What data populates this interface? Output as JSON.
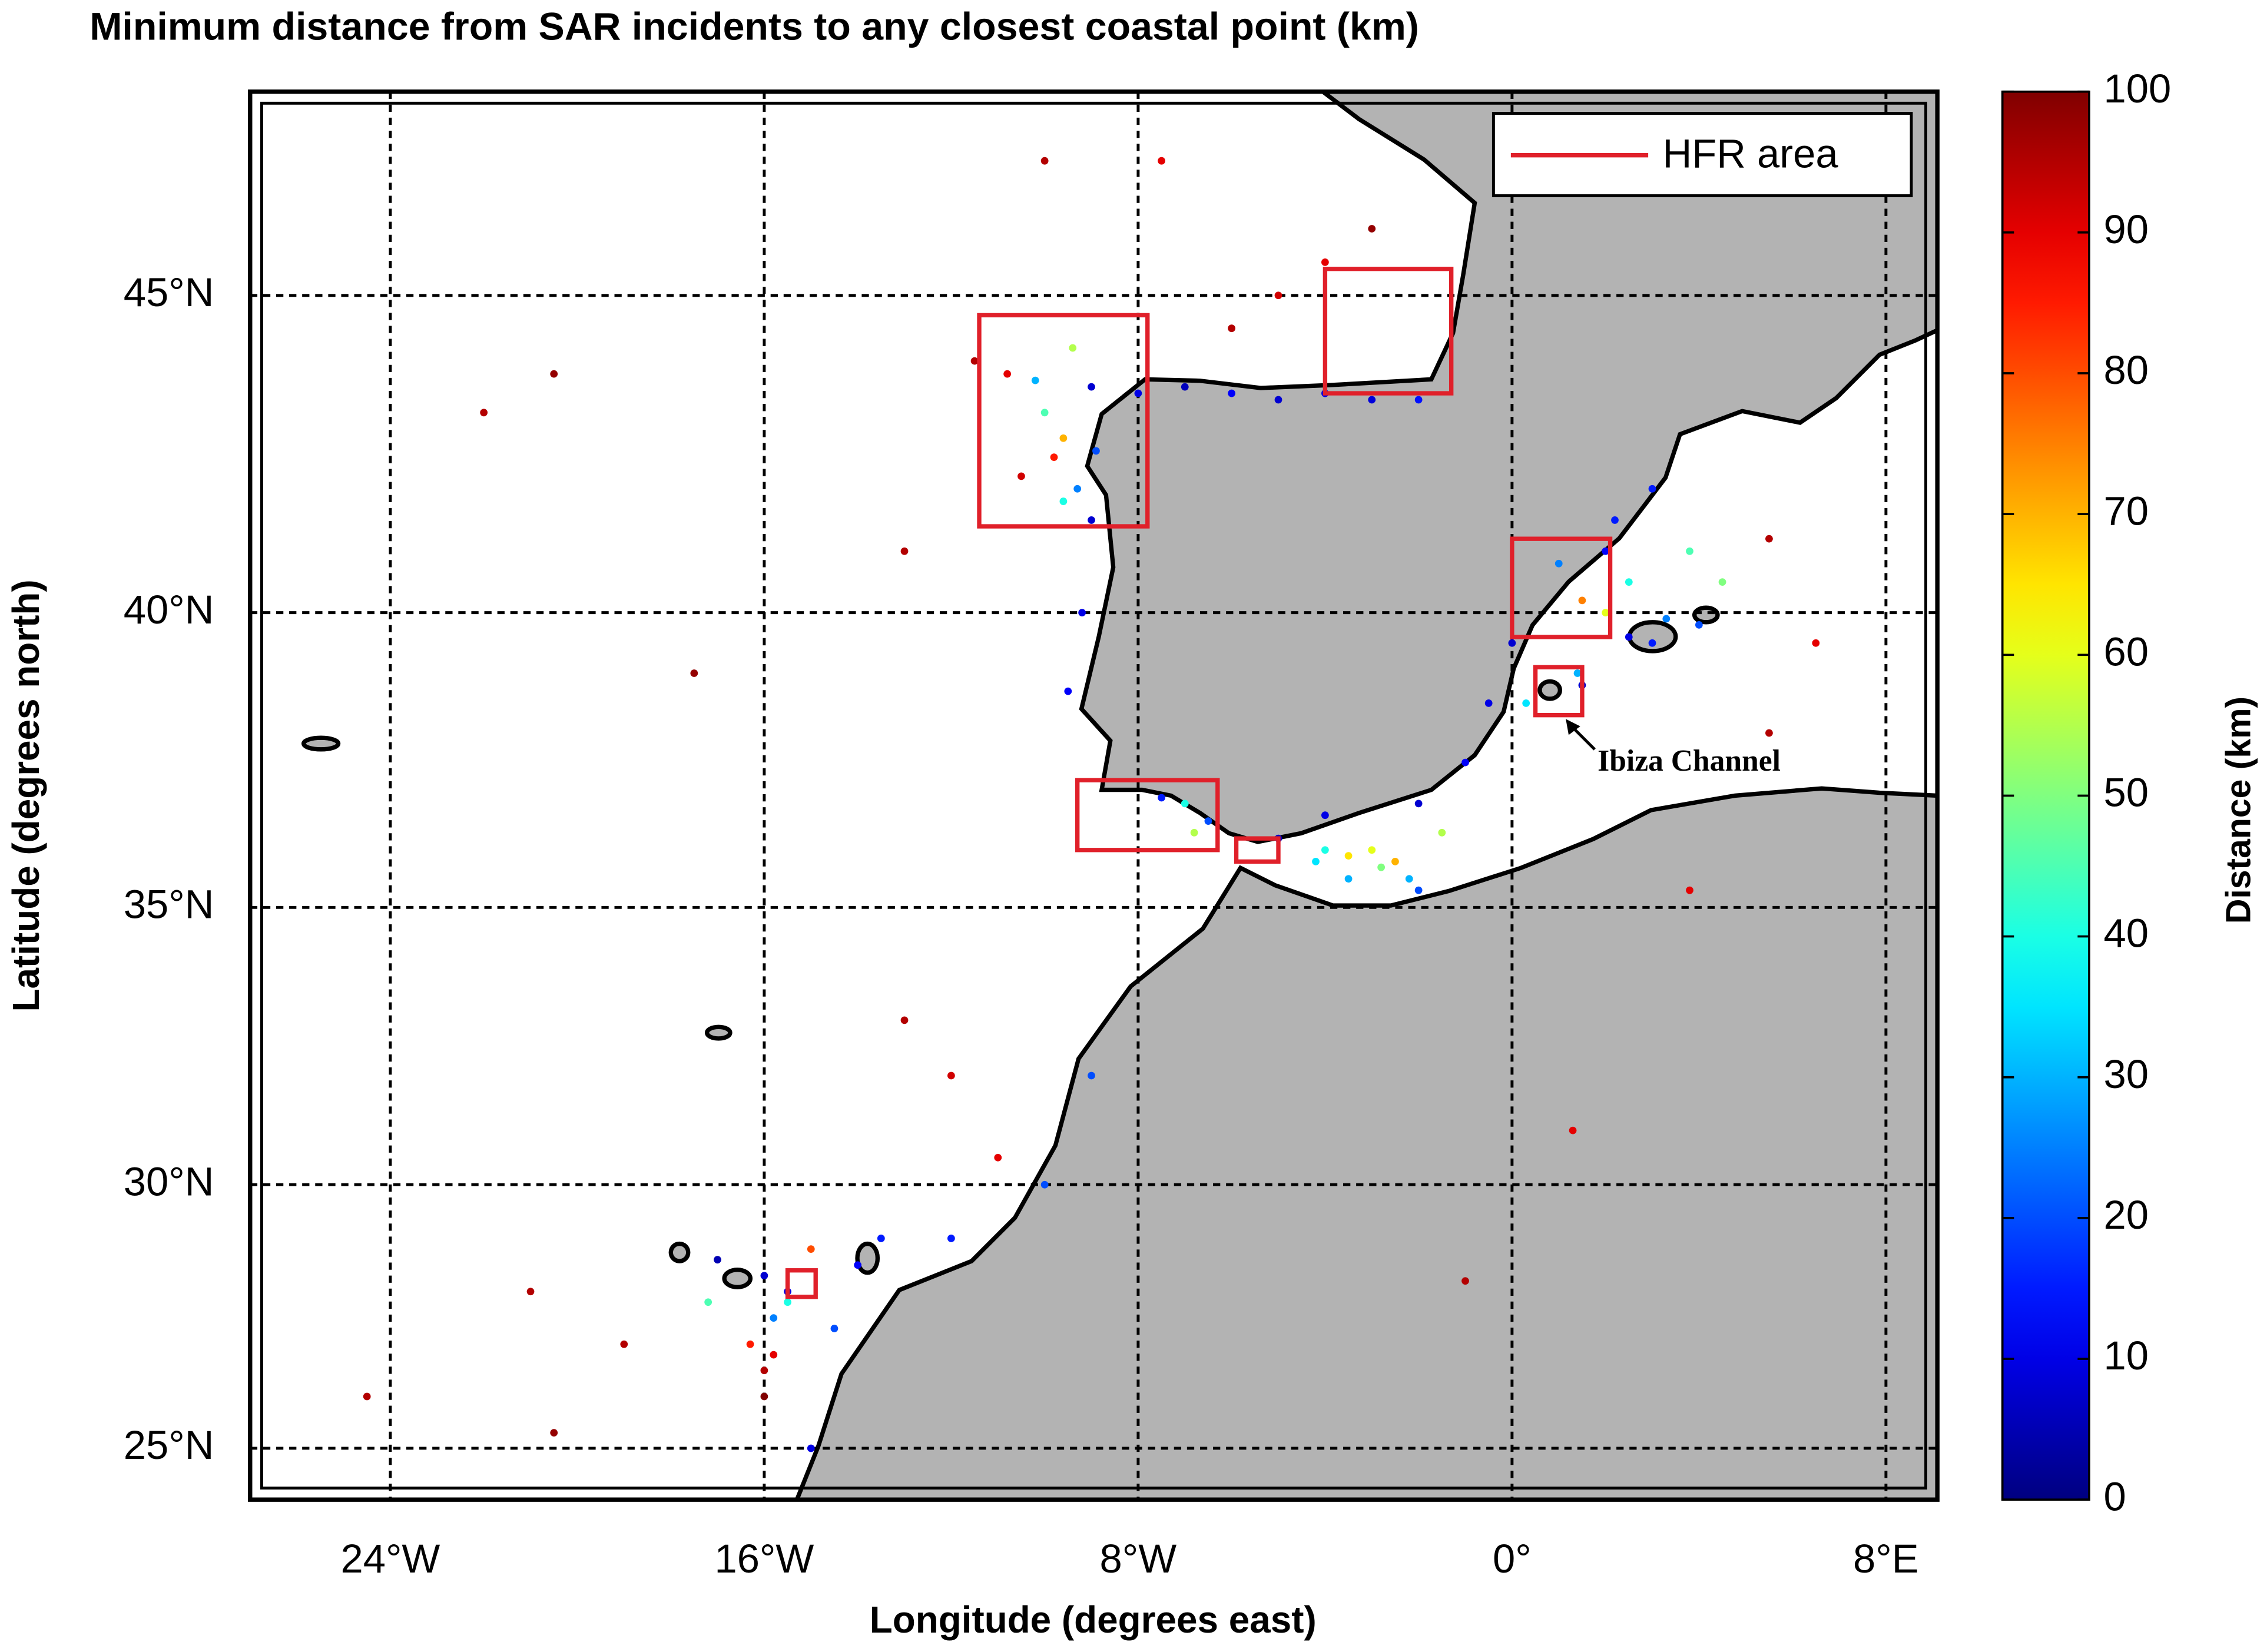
{
  "chart_data": {
    "type": "scatter",
    "title": "Minimum distance from SAR incidents to any closest coastal point (km)",
    "xlabel": "Longitude (degrees east)",
    "ylabel": "Latitude (degrees north)",
    "projection": "mercator",
    "xlim": [
      -27,
      9.1
    ],
    "ylim": [
      24,
      48
    ],
    "xticks": [
      {
        "value": -24,
        "label": "24°W"
      },
      {
        "value": -16,
        "label": "16°W"
      },
      {
        "value": -8,
        "label": "8°W"
      },
      {
        "value": 0,
        "label": "0°"
      },
      {
        "value": 8,
        "label": "8°E"
      }
    ],
    "yticks": [
      {
        "value": 25,
        "label": "25°N"
      },
      {
        "value": 30,
        "label": "30°N"
      },
      {
        "value": 35,
        "label": "35°N"
      },
      {
        "value": 40,
        "label": "40°N"
      },
      {
        "value": 45,
        "label": "45°N"
      }
    ],
    "grid": true,
    "colormap": "jet",
    "colorbar_label": "Distance (km)",
    "clim": [
      0,
      100
    ],
    "cticks": [
      0,
      10,
      20,
      30,
      40,
      50,
      60,
      70,
      80,
      90,
      100
    ],
    "x": [
      -9,
      -8,
      -7,
      -6,
      -5,
      -4,
      -3,
      -2,
      -10,
      -9.6,
      -9.8,
      -10.2,
      -9.4,
      -10.5,
      -9.3,
      -9.6,
      -6,
      -4,
      -3,
      -7.5,
      -10,
      -5,
      -9.2,
      -9.5,
      -9,
      -8.9,
      0,
      -0.5,
      -1,
      -2,
      -4,
      -5,
      -3,
      -2.5,
      -4,
      -3.5,
      -2,
      -2.8,
      2.5,
      3,
      4,
      1.4,
      1.5,
      3.3,
      2.2,
      3,
      2,
      1,
      2.5,
      2,
      1.5,
      0.3,
      -15.5,
      -16,
      -17,
      -14,
      -13.5,
      -15.5,
      -15.8,
      -16,
      -16,
      -15.8,
      -16.3,
      -15,
      -17.2,
      -14.5,
      -12,
      -10,
      -9,
      -15,
      -22,
      -20.5,
      -17.5,
      -13,
      -21,
      -19,
      -24.5,
      -20.5,
      -13,
      -12,
      -11,
      -1,
      1.3,
      3.8,
      5.5,
      6.5,
      5.5,
      -7,
      -6.8,
      -6.5,
      -7.5,
      -3.5,
      -4.2,
      -1.5,
      -2.2,
      4.5,
      3.8,
      -11.5,
      -10.8
    ],
    "y": [
      43.6,
      43.5,
      43.6,
      43.5,
      43.4,
      43.5,
      43.4,
      43.4,
      43.2,
      42.8,
      42.5,
      43.7,
      44.2,
      42.2,
      42,
      41.8,
      44.5,
      45.5,
      46,
      47,
      47,
      45,
      40,
      38.7,
      41.5,
      42.6,
      39.5,
      38.5,
      37.5,
      36.8,
      36.6,
      36.2,
      36,
      35.8,
      36,
      35.5,
      35.3,
      35.7,
      39.6,
      39.5,
      39.8,
      39,
      38.8,
      39.9,
      41.5,
      42,
      41,
      40.8,
      40.5,
      40,
      40.2,
      38.5,
      28,
      28.3,
      28.6,
      28.5,
      29,
      27.8,
      27.5,
      26.5,
      26,
      26.8,
      27,
      28.8,
      27.8,
      27.3,
      29,
      30,
      32,
      25,
      43.2,
      43.8,
      39,
      41,
      28,
      27,
      26,
      25.3,
      33,
      32,
      30.5,
      28.2,
      31,
      35.3,
      41.2,
      39.5,
      38,
      36.8,
      36.3,
      36.5,
      36.9,
      35.9,
      35.8,
      36.3,
      35.5,
      40.5,
      41,
      44,
      43.8
    ],
    "color_values": [
      8,
      10,
      6,
      12,
      8,
      10,
      9,
      14,
      45,
      70,
      85,
      30,
      55,
      92,
      25,
      40,
      95,
      90,
      98,
      90,
      95,
      92,
      10,
      12,
      8,
      20,
      8,
      10,
      12,
      8,
      10,
      6,
      60,
      70,
      40,
      30,
      20,
      50,
      10,
      15,
      20,
      30,
      8,
      25,
      15,
      15,
      12,
      25,
      40,
      60,
      75,
      35,
      10,
      8,
      5,
      12,
      15,
      40,
      25,
      95,
      100,
      90,
      85,
      80,
      45,
      20,
      15,
      20,
      20,
      10,
      95,
      98,
      98,
      95,
      95,
      95,
      95,
      98,
      95,
      92,
      90,
      95,
      90,
      90,
      95,
      90,
      95,
      40,
      55,
      20,
      15,
      65,
      35,
      55,
      30,
      50,
      45,
      95,
      90
    ],
    "hfr_areas": [
      [
        -11.4,
        -7.8,
        41.4,
        44.7
      ],
      [
        -4,
        -1.3,
        43.5,
        45.4
      ],
      [
        0,
        2.1,
        39.6,
        41.2
      ],
      [
        0.5,
        1.5,
        38.3,
        39.1
      ],
      [
        -9.3,
        -6.3,
        36,
        37.2
      ],
      [
        -5.9,
        -5,
        35.8,
        36.2
      ],
      [
        -15.5,
        -14.9,
        27.9,
        28.4
      ]
    ],
    "hfr_color": "#e0202a",
    "legend": {
      "label": "HFR area",
      "position": "upper right"
    },
    "annotation": "Ibiza Channel",
    "land_color": "#b3b3b3"
  }
}
